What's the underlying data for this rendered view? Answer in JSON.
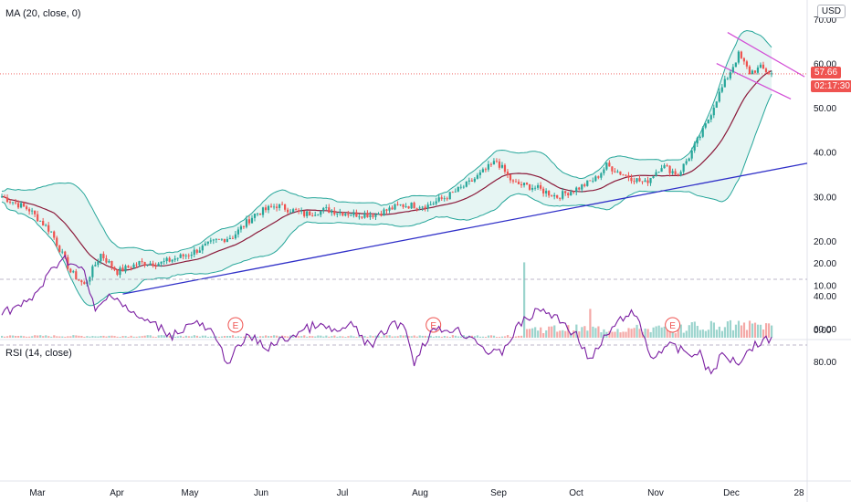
{
  "panes": {
    "price_title": "MA (20, close, 0)",
    "rsi_title": "RSI (14, close)",
    "currency": "USD",
    "last_price": "57.66",
    "countdown": "02:17:30",
    "earnings_marker": "E"
  },
  "colors": {
    "up": "#26a69a",
    "down": "#ef5350",
    "ma": "#8b1a3a",
    "band": "#26a69a",
    "band_fill": "#e6f5f3",
    "trendline": "#3030c8",
    "channel": "#d24cd6",
    "rsi": "#7b1fa2",
    "rsi_fill": "#f3e5f5",
    "price_tag": "#ef5350"
  },
  "chart_data": [
    {
      "type": "candlestick",
      "x_ticks": [
        "Mar",
        "Apr",
        "May",
        "Jun",
        "Jul",
        "Aug",
        "Sep",
        "Oct",
        "Nov",
        "Dec",
        "28"
      ],
      "y_ticks": [
        "0.00",
        "10.00",
        "20.00",
        "30.00",
        "40.00",
        "50.00",
        "60.00",
        "70.00"
      ],
      "ylim": [
        0,
        72
      ],
      "last_value": 57.66,
      "close_path": [
        [
          0,
          30
        ],
        [
          10,
          27
        ],
        [
          18,
          22
        ],
        [
          25,
          13
        ],
        [
          30,
          10
        ],
        [
          36,
          17
        ],
        [
          42,
          13
        ],
        [
          50,
          15
        ],
        [
          58,
          15
        ],
        [
          68,
          17
        ],
        [
          78,
          20
        ],
        [
          84,
          21
        ],
        [
          92,
          26
        ],
        [
          100,
          28
        ],
        [
          110,
          26
        ],
        [
          118,
          27
        ],
        [
          128,
          26
        ],
        [
          136,
          26
        ],
        [
          145,
          28
        ],
        [
          155,
          28
        ],
        [
          162,
          30
        ],
        [
          170,
          33
        ],
        [
          180,
          38
        ],
        [
          186,
          33
        ],
        [
          194,
          32
        ],
        [
          202,
          30
        ],
        [
          210,
          32
        ],
        [
          216,
          34
        ],
        [
          220,
          37
        ],
        [
          226,
          35
        ],
        [
          234,
          33
        ],
        [
          240,
          37
        ],
        [
          246,
          35
        ],
        [
          250,
          39
        ],
        [
          256,
          46
        ],
        [
          260,
          52
        ],
        [
          264,
          57
        ],
        [
          268,
          62
        ],
        [
          272,
          58
        ],
        [
          276,
          59
        ],
        [
          280,
          57.66
        ]
      ],
      "earnings_markers": 3,
      "volume_spike": 17
    },
    {
      "type": "line",
      "series": [
        {
          "name": "RSI (14, close)",
          "points": [
            [
              0,
              50
            ],
            [
              10,
              44
            ],
            [
              16,
              30
            ],
            [
              22,
              16
            ],
            [
              30,
              26
            ],
            [
              34,
              50
            ],
            [
              40,
              38
            ],
            [
              48,
              52
            ],
            [
              56,
              58
            ],
            [
              62,
              64
            ],
            [
              70,
              56
            ],
            [
              76,
              62
            ],
            [
              82,
              80
            ],
            [
              90,
              64
            ],
            [
              96,
              72
            ],
            [
              106,
              64
            ],
            [
              114,
              58
            ],
            [
              122,
              62
            ],
            [
              128,
              58
            ],
            [
              134,
              72
            ],
            [
              140,
              60
            ],
            [
              146,
              56
            ],
            [
              150,
              80
            ],
            [
              156,
              62
            ],
            [
              164,
              60
            ],
            [
              172,
              66
            ],
            [
              178,
              76
            ],
            [
              182,
              74
            ],
            [
              188,
              58
            ],
            [
              196,
              48
            ],
            [
              204,
              56
            ],
            [
              210,
              66
            ],
            [
              214,
              80
            ],
            [
              220,
              64
            ],
            [
              228,
              50
            ],
            [
              232,
              56
            ],
            [
              236,
              78
            ],
            [
              242,
              70
            ],
            [
              248,
              74
            ],
            [
              254,
              76
            ],
            [
              258,
              88
            ],
            [
              262,
              76
            ],
            [
              268,
              80
            ],
            [
              272,
              72
            ],
            [
              276,
              68
            ],
            [
              280,
              66
            ]
          ]
        }
      ],
      "y_ticks": [
        "20.00",
        "40.00",
        "60.00",
        "80.00"
      ],
      "ylim": [
        10,
        90
      ],
      "band": [
        30,
        70
      ]
    }
  ]
}
